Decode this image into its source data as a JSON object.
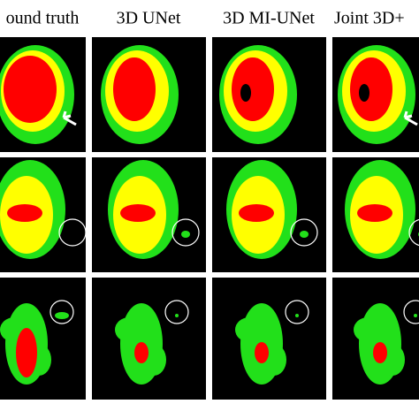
{
  "header": {
    "columns": [
      "ound truth",
      "3D UNet",
      "3D MI-UNet",
      "Joint 3D+"
    ]
  }
}
